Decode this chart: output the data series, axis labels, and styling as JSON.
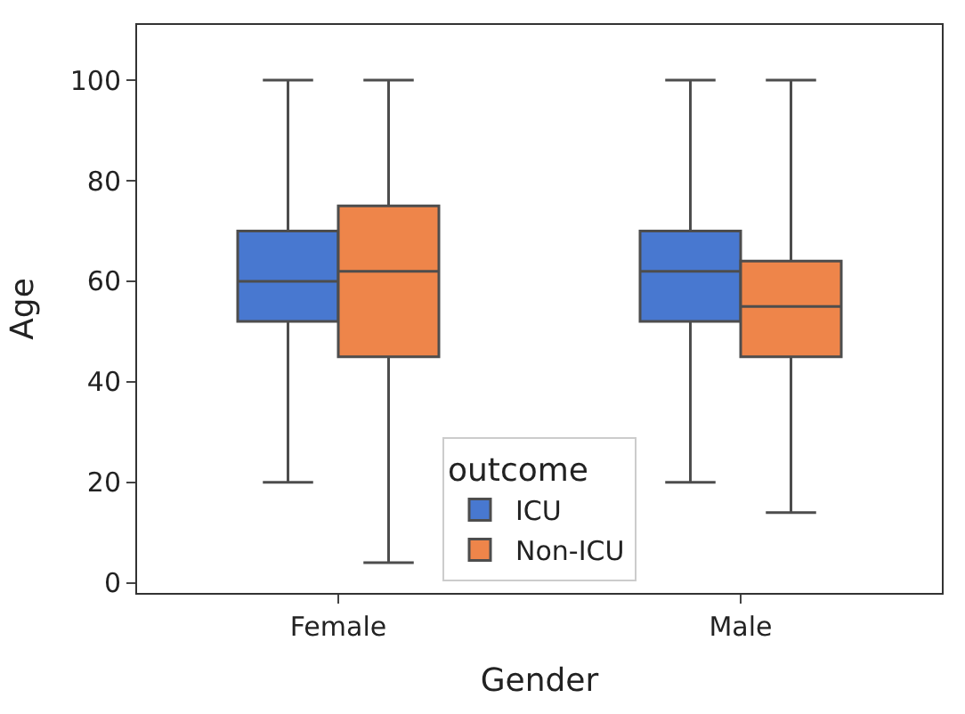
{
  "chart_data": {
    "type": "box",
    "xlabel": "Gender",
    "ylabel": "Age",
    "legend_title": "outcome",
    "legend": "bottom",
    "categories": [
      "Female",
      "Male"
    ],
    "ylim": [
      -2,
      111
    ],
    "yticks": [
      0,
      20,
      40,
      60,
      80,
      100
    ],
    "series": [
      {
        "name": "ICU",
        "color": "#4878d0",
        "boxes": [
          {
            "low": 20,
            "q1": 52,
            "median": 60,
            "q3": 70,
            "high": 100
          },
          {
            "low": 20,
            "q1": 52,
            "median": 62,
            "q3": 70,
            "high": 100
          }
        ]
      },
      {
        "name": "Non-ICU",
        "color": "#ee854a",
        "boxes": [
          {
            "low": 4,
            "q1": 45,
            "median": 62,
            "q3": 75,
            "high": 100
          },
          {
            "low": 14,
            "q1": 45,
            "median": 55,
            "q3": 64,
            "high": 100
          }
        ]
      }
    ]
  }
}
